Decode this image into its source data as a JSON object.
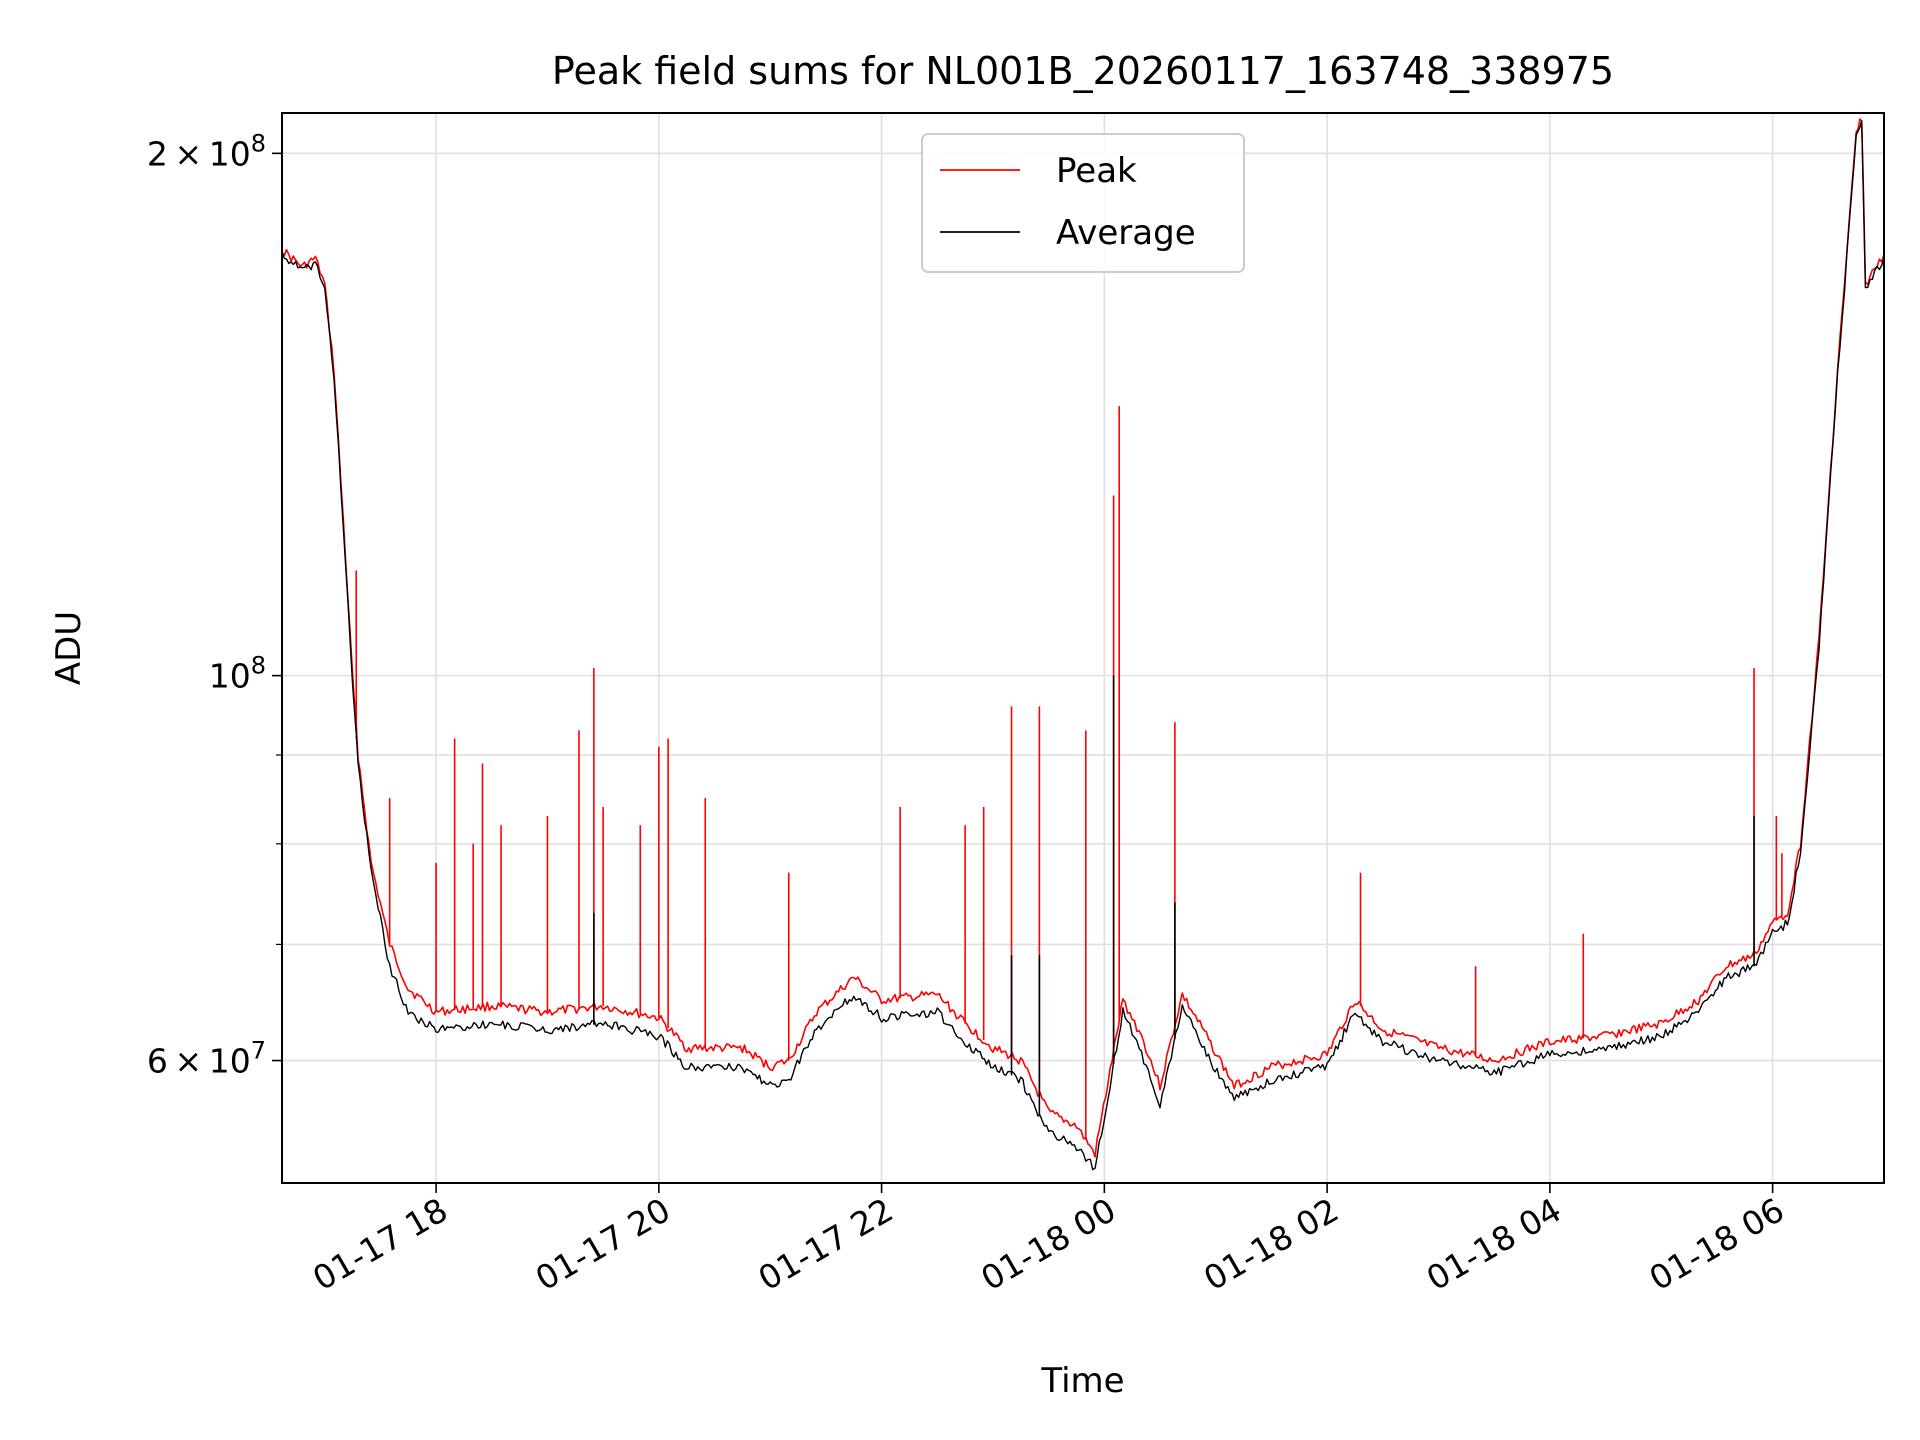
{
  "chart_data": {
    "type": "line",
    "title": "Peak field sums for NL001B_20260117_163748_338975",
    "xlabel": "Time",
    "ylabel": "ADU",
    "y_scale": "log",
    "ylim": [
      51000000,
      211000000
    ],
    "xlim": [
      "01-17 16:37",
      "01-18 07:00"
    ],
    "grid": true,
    "legend_position": "top-center",
    "x_ticks": [
      {
        "label": "01-17 18",
        "t": "01-17 18:00"
      },
      {
        "label": "01-17 20",
        "t": "01-17 20:00"
      },
      {
        "label": "01-17 22",
        "t": "01-17 22:00"
      },
      {
        "label": "01-18 00",
        "t": "01-18 00:00"
      },
      {
        "label": "01-18 02",
        "t": "01-18 02:00"
      },
      {
        "label": "01-18 04",
        "t": "01-18 04:00"
      },
      {
        "label": "01-18 06",
        "t": "01-18 06:00"
      }
    ],
    "y_ticks": [
      {
        "value": 60000000,
        "mantissa": "6",
        "exp": "7",
        "kind": "sci"
      },
      {
        "value": 100000000,
        "mantissa": "",
        "exp": "8",
        "kind": "pow"
      },
      {
        "value": 200000000,
        "mantissa": "2",
        "exp": "8",
        "kind": "sci"
      }
    ],
    "y_minor_ticks": [
      70000000,
      80000000,
      90000000
    ],
    "series": [
      {
        "name": "Peak",
        "color": "#ff0000",
        "points": [
          [
            "01-17 16:37",
            176000000
          ],
          [
            "01-17 16:48",
            172000000
          ],
          [
            "01-17 16:55",
            174000000
          ],
          [
            "01-17 17:00",
            168000000
          ],
          [
            "01-17 17:05",
            150000000
          ],
          [
            "01-17 17:10",
            123000000
          ],
          [
            "01-17 17:15",
            100000000
          ],
          [
            "01-17 17:18",
            90000000
          ],
          [
            "01-17 17:25",
            78000000
          ],
          [
            "01-17 17:35",
            70000000
          ],
          [
            "01-17 17:45",
            66000000
          ],
          [
            "01-17 18:00",
            64000000
          ],
          [
            "01-17 18:30",
            64500000
          ],
          [
            "01-17 19:00",
            64000000
          ],
          [
            "01-17 19:30",
            64500000
          ],
          [
            "01-17 20:00",
            63500000
          ],
          [
            "01-17 20:15",
            61000000
          ],
          [
            "01-17 20:45",
            61000000
          ],
          [
            "01-17 21:00",
            59500000
          ],
          [
            "01-17 21:10",
            60000000
          ],
          [
            "01-17 21:25",
            64000000
          ],
          [
            "01-17 21:45",
            67000000
          ],
          [
            "01-17 22:00",
            65000000
          ],
          [
            "01-17 22:30",
            65500000
          ],
          [
            "01-17 22:45",
            63000000
          ],
          [
            "01-17 23:00",
            61000000
          ],
          [
            "01-17 23:15",
            60000000
          ],
          [
            "01-17 23:30",
            56000000
          ],
          [
            "01-17 23:45",
            55000000
          ],
          [
            "01-17 23:55",
            53000000
          ],
          [
            "01-18 00:10",
            65000000
          ],
          [
            "01-18 00:20",
            62000000
          ],
          [
            "01-18 00:30",
            58000000
          ],
          [
            "01-18 00:42",
            65500000
          ],
          [
            "01-18 00:55",
            62000000
          ],
          [
            "01-18 01:10",
            58000000
          ],
          [
            "01-18 01:30",
            59500000
          ],
          [
            "01-18 02:00",
            60500000
          ],
          [
            "01-18 02:15",
            65000000
          ],
          [
            "01-18 02:30",
            62500000
          ],
          [
            "01-18 03:00",
            61000000
          ],
          [
            "01-18 03:30",
            60000000
          ],
          [
            "01-18 04:00",
            61500000
          ],
          [
            "01-18 04:30",
            62000000
          ],
          [
            "01-18 05:00",
            63000000
          ],
          [
            "01-18 05:20",
            65000000
          ],
          [
            "01-18 05:35",
            68000000
          ],
          [
            "01-18 05:50",
            69000000
          ],
          [
            "01-18 06:00",
            72000000
          ],
          [
            "01-18 06:08",
            73000000
          ],
          [
            "01-18 06:15",
            80000000
          ],
          [
            "01-18 06:25",
            105000000
          ],
          [
            "01-18 06:35",
            150000000
          ],
          [
            "01-18 06:45",
            205000000
          ],
          [
            "01-18 06:48",
            210000000
          ],
          [
            "01-18 06:50",
            168000000
          ],
          [
            "01-18 07:00",
            175000000
          ]
        ],
        "spikes": [
          [
            "01-17 17:17",
            115000000
          ],
          [
            "01-17 17:35",
            85000000
          ],
          [
            "01-17 18:00",
            78000000
          ],
          [
            "01-17 18:10",
            92000000
          ],
          [
            "01-17 18:20",
            80000000
          ],
          [
            "01-17 18:25",
            89000000
          ],
          [
            "01-17 18:35",
            82000000
          ],
          [
            "01-17 19:00",
            83000000
          ],
          [
            "01-17 19:17",
            93000000
          ],
          [
            "01-17 19:25",
            101000000
          ],
          [
            "01-17 19:30",
            84000000
          ],
          [
            "01-17 19:50",
            82000000
          ],
          [
            "01-17 20:00",
            91000000
          ],
          [
            "01-17 20:05",
            92000000
          ],
          [
            "01-17 20:25",
            85000000
          ],
          [
            "01-17 21:10",
            77000000
          ],
          [
            "01-17 22:10",
            84000000
          ],
          [
            "01-17 22:45",
            82000000
          ],
          [
            "01-17 22:55",
            84000000
          ],
          [
            "01-17 23:10",
            96000000
          ],
          [
            "01-17 23:25",
            96000000
          ],
          [
            "01-17 23:50",
            93000000
          ],
          [
            "01-18 00:05",
            127000000
          ],
          [
            "01-18 00:08",
            143000000
          ],
          [
            "01-18 00:38",
            94000000
          ],
          [
            "01-18 02:18",
            77000000
          ],
          [
            "01-18 03:20",
            68000000
          ],
          [
            "01-18 04:18",
            71000000
          ],
          [
            "01-18 05:50",
            101000000
          ],
          [
            "01-18 06:02",
            83000000
          ],
          [
            "01-18 06:05",
            79000000
          ]
        ]
      },
      {
        "name": "Average",
        "color": "#000000",
        "points": [
          [
            "01-17 16:37",
            175000000
          ],
          [
            "01-17 16:48",
            171000000
          ],
          [
            "01-17 16:55",
            173000000
          ],
          [
            "01-17 17:00",
            167000000
          ],
          [
            "01-17 17:05",
            149000000
          ],
          [
            "01-17 17:10",
            122000000
          ],
          [
            "01-17 17:15",
            99000000
          ],
          [
            "01-17 17:18",
            89000000
          ],
          [
            "01-17 17:25",
            77000000
          ],
          [
            "01-17 17:35",
            68000000
          ],
          [
            "01-17 17:45",
            64000000
          ],
          [
            "01-17 18:00",
            62500000
          ],
          [
            "01-17 18:30",
            63000000
          ],
          [
            "01-17 19:00",
            62500000
          ],
          [
            "01-17 19:30",
            63000000
          ],
          [
            "01-17 20:00",
            62000000
          ],
          [
            "01-17 20:15",
            59500000
          ],
          [
            "01-17 20:45",
            59500000
          ],
          [
            "01-17 21:00",
            58000000
          ],
          [
            "01-17 21:10",
            58500000
          ],
          [
            "01-17 21:25",
            62500000
          ],
          [
            "01-17 21:45",
            65500000
          ],
          [
            "01-17 22:00",
            63500000
          ],
          [
            "01-17 22:30",
            64000000
          ],
          [
            "01-17 22:45",
            61500000
          ],
          [
            "01-17 23:00",
            59500000
          ],
          [
            "01-17 23:15",
            58500000
          ],
          [
            "01-17 23:30",
            54500000
          ],
          [
            "01-17 23:45",
            53500000
          ],
          [
            "01-17 23:55",
            52000000
          ],
          [
            "01-18 00:10",
            64000000
          ],
          [
            "01-18 00:20",
            60500000
          ],
          [
            "01-18 00:30",
            56500000
          ],
          [
            "01-18 00:42",
            64500000
          ],
          [
            "01-18 00:55",
            60500000
          ],
          [
            "01-18 01:10",
            57000000
          ],
          [
            "01-18 01:30",
            58500000
          ],
          [
            "01-18 02:00",
            59500000
          ],
          [
            "01-18 02:15",
            64000000
          ],
          [
            "01-18 02:30",
            61500000
          ],
          [
            "01-18 03:00",
            60000000
          ],
          [
            "01-18 03:30",
            59000000
          ],
          [
            "01-18 04:00",
            60500000
          ],
          [
            "01-18 04:30",
            61000000
          ],
          [
            "01-18 05:00",
            62000000
          ],
          [
            "01-18 05:20",
            64000000
          ],
          [
            "01-18 05:35",
            67000000
          ],
          [
            "01-18 05:50",
            68000000
          ],
          [
            "01-18 06:00",
            71000000
          ],
          [
            "01-18 06:08",
            72000000
          ],
          [
            "01-18 06:15",
            79000000
          ],
          [
            "01-18 06:25",
            104000000
          ],
          [
            "01-18 06:35",
            149000000
          ],
          [
            "01-18 06:45",
            204000000
          ],
          [
            "01-18 06:48",
            208000000
          ],
          [
            "01-18 06:50",
            167000000
          ],
          [
            "01-18 07:00",
            174000000
          ]
        ],
        "spikes": [
          [
            "01-17 17:17",
            92000000
          ],
          [
            "01-18 00:05",
            100000000
          ],
          [
            "01-18 00:38",
            74000000
          ],
          [
            "01-18 05:50",
            83000000
          ],
          [
            "01-17 19:25",
            73000000
          ],
          [
            "01-17 23:10",
            69000000
          ],
          [
            "01-17 23:25",
            69000000
          ]
        ]
      }
    ]
  }
}
